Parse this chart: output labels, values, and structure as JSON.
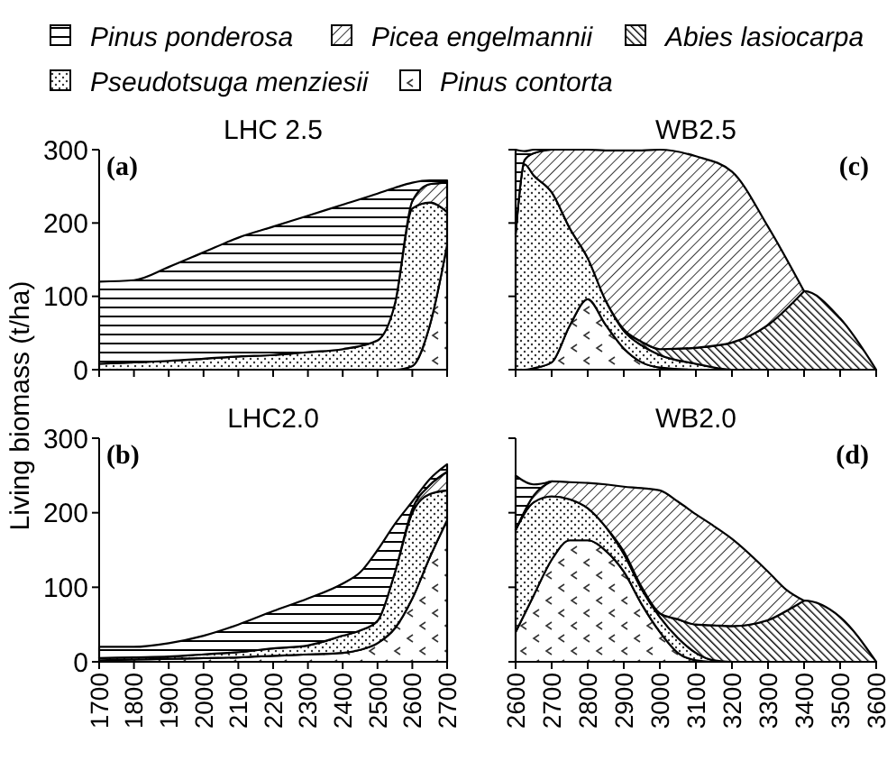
{
  "chart_data": [
    {
      "type": "area",
      "stacked": true,
      "title": "LHC 2.5",
      "ylabel": "Living biomass (t/ha)",
      "annotations": [
        "(a)"
      ],
      "legend": "top",
      "tick_labels": "y",
      "xlim": [
        1700,
        2700
      ],
      "ylim": [
        0,
        300
      ],
      "xticks": [
        1700,
        1800,
        1900,
        2000,
        2100,
        2200,
        2300,
        2400,
        2500,
        2600,
        2700
      ],
      "yticks": [
        0,
        100,
        200,
        300
      ],
      "x": [
        1700,
        1800,
        1900,
        2000,
        2100,
        2200,
        2300,
        2400,
        2500,
        2550,
        2600,
        2650,
        2700
      ],
      "series": [
        {
          "name": "Pinus contorta",
          "color": "#000000",
          "values": [
            null,
            null,
            null,
            null,
            null,
            null,
            null,
            null,
            0,
            0,
            5,
            60,
            170
          ]
        },
        {
          "name": "Pseudotsuga menziesii",
          "color": "#000000",
          "values": [
            8,
            10,
            12,
            15,
            18,
            20,
            24,
            28,
            40,
            90,
            215,
            168,
            45
          ]
        },
        {
          "name": "Abies lasiocarpa",
          "color": "#000000",
          "values": [
            null,
            null,
            null,
            null,
            null,
            null,
            null,
            null,
            null,
            null,
            null,
            null,
            null
          ]
        },
        {
          "name": "Picea engelmannii",
          "color": "#000000",
          "values": [
            null,
            null,
            null,
            null,
            null,
            null,
            null,
            null,
            null,
            0,
            10,
            25,
            40
          ]
        },
        {
          "name": "Pinus ponderosa",
          "color": "#000000",
          "values": [
            112,
            112,
            128,
            145,
            162,
            175,
            186,
            197,
            200,
            158,
            25,
            5,
            3
          ]
        }
      ]
    },
    {
      "type": "area",
      "stacked": true,
      "title": "LHC2.0",
      "annotations": [
        "(b)"
      ],
      "xlim": [
        1700,
        2700
      ],
      "ylim": [
        0,
        300
      ],
      "xticks": [
        1700,
        1800,
        1900,
        2000,
        2100,
        2200,
        2300,
        2400,
        2500,
        2600,
        2700
      ],
      "yticks": [
        0,
        100,
        200,
        300
      ],
      "x": [
        1700,
        1800,
        1900,
        2000,
        2100,
        2200,
        2300,
        2400,
        2450,
        2500,
        2550,
        2600,
        2650,
        2700
      ],
      "series": [
        {
          "color": "#000000",
          "values": [
            2,
            3,
            4,
            5,
            6,
            8,
            10,
            12,
            16,
            25,
            45,
            85,
            140,
            190
          ]
        },
        {
          "color": "#000000",
          "values": [
            3,
            3,
            3,
            5,
            7,
            10,
            12,
            23,
            26,
            30,
            75,
            115,
            85,
            40
          ]
        },
        {
          "color": "#000000",
          "values": [
            null,
            null,
            null,
            null,
            null,
            null,
            null,
            null,
            null,
            null,
            null,
            null,
            null,
            null
          ]
        },
        {
          "color": "#000000",
          "values": [
            null,
            null,
            null,
            null,
            null,
            null,
            null,
            null,
            null,
            null,
            0,
            5,
            12,
            25
          ]
        },
        {
          "color": "#000000",
          "values": [
            15,
            14,
            18,
            25,
            37,
            50,
            63,
            70,
            78,
            95,
            65,
            10,
            8,
            10
          ]
        }
      ]
    },
    {
      "type": "area",
      "stacked": true,
      "title": "WB2.5",
      "annotations": [
        "(c)"
      ],
      "tick_labels": false,
      "xlim": [
        2600,
        3600
      ],
      "ylim": [
        0,
        300
      ],
      "xticks": [
        2600,
        2700,
        2800,
        2900,
        3000,
        3100,
        3200,
        3300,
        3400,
        3500,
        3600
      ],
      "yticks": [
        0,
        100,
        200,
        300
      ],
      "x": [
        2600,
        2625,
        2650,
        2700,
        2750,
        2800,
        2850,
        2900,
        2950,
        3000,
        3100,
        3200,
        3300,
        3400,
        3500,
        3600
      ],
      "series": [
        {
          "color": "#000000",
          "values": [
            null,
            0,
            2,
            10,
            60,
            96,
            61,
            29,
            10,
            3,
            0,
            null,
            null,
            null,
            null,
            null
          ]
        },
        {
          "color": "#000000",
          "values": [
            185,
            280,
            263,
            232,
            133,
            56,
            33,
            24,
            23,
            17,
            8,
            0,
            null,
            null,
            null,
            null
          ]
        },
        {
          "color": "#000000",
          "values": [
            null,
            null,
            null,
            null,
            null,
            null,
            0,
            2,
            5,
            8,
            22,
            37,
            61,
            107,
            70,
            0
          ]
        },
        {
          "color": "#000000",
          "values": [
            0,
            6,
            30,
            58,
            107,
            148,
            205,
            244,
            261,
            272,
            261,
            233,
            134,
            0,
            null,
            null
          ]
        },
        {
          "color": "#000000",
          "values": [
            115,
            12,
            5,
            0,
            null,
            null,
            null,
            null,
            null,
            null,
            null,
            null,
            null,
            null,
            null,
            null
          ]
        }
      ]
    },
    {
      "type": "area",
      "stacked": true,
      "title": "WB2.0",
      "annotations": [
        "(d)"
      ],
      "tick_labels": "x",
      "xlim": [
        2600,
        3600
      ],
      "ylim": [
        0,
        300
      ],
      "xticks": [
        2600,
        2700,
        2800,
        2900,
        3000,
        3100,
        3200,
        3300,
        3400,
        3500,
        3600
      ],
      "yticks": [
        0,
        100,
        200,
        300
      ],
      "x": [
        2600,
        2650,
        2700,
        2750,
        2800,
        2850,
        2900,
        2950,
        3000,
        3050,
        3100,
        3150,
        3200,
        3300,
        3350,
        3400,
        3500,
        3600
      ],
      "series": [
        {
          "color": "#000000",
          "values": [
            40,
            89,
            137,
            163,
            163,
            149,
            121,
            77,
            40,
            12,
            2,
            0,
            null,
            null,
            null,
            null,
            null,
            null
          ]
        },
        {
          "color": "#000000",
          "values": [
            137,
            125,
            85,
            55,
            43,
            32,
            24,
            20,
            20,
            20,
            10,
            2,
            0,
            null,
            null,
            null,
            null,
            null
          ]
        },
        {
          "color": "#000000",
          "values": [
            null,
            null,
            null,
            null,
            null,
            0,
            3,
            3,
            5,
            25,
            38,
            47,
            48,
            56,
            68,
            82,
            60,
            0
          ]
        },
        {
          "color": "#000000",
          "values": [
            0,
            9,
            20,
            23,
            34,
            57,
            87,
            133,
            165,
            158,
            148,
            133,
            117,
            65,
            29,
            0,
            null,
            null
          ]
        },
        {
          "color": "#000000",
          "values": [
            73,
            15,
            0,
            null,
            null,
            null,
            null,
            null,
            null,
            null,
            null,
            null,
            null,
            null,
            null,
            null,
            null,
            null
          ]
        }
      ]
    }
  ]
}
